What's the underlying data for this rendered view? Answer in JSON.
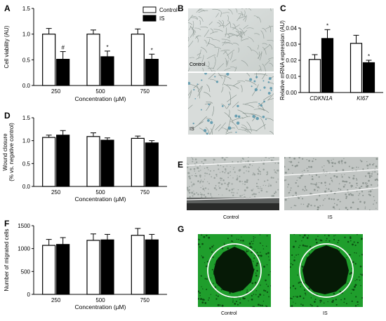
{
  "figure": {
    "panel_letters": [
      "A",
      "B",
      "C",
      "D",
      "E",
      "F",
      "G"
    ],
    "legend": {
      "control": "Control",
      "is": "IS"
    },
    "image_labels": {
      "b_top": "Control",
      "b_bottom": "IS",
      "e_left": "Control",
      "e_right": "IS",
      "g_left": "Control",
      "g_right": "IS"
    }
  },
  "colors": {
    "control": "#ffffff",
    "is": "#000000",
    "axis": "#000000",
    "green": "#1f9e2c",
    "dark": "#061a06"
  },
  "chart_data": [
    {
      "id": "A",
      "type": "bar",
      "ylabel": "Cell viability (AU)",
      "xlabel": "Concentration (µM)",
      "categories": [
        "250",
        "500",
        "750"
      ],
      "ylim": [
        0,
        1.5
      ],
      "yticks": [
        "0.0",
        "0.5",
        "1.0",
        "1.5"
      ],
      "series": [
        {
          "name": "Control",
          "values": [
            1.0,
            1.0,
            1.0
          ],
          "errors": [
            0.11,
            0.08,
            0.1
          ]
        },
        {
          "name": "IS",
          "values": [
            0.51,
            0.56,
            0.51
          ],
          "errors": [
            0.15,
            0.11,
            0.1
          ]
        }
      ],
      "annotations": [
        "#",
        "*",
        "*"
      ],
      "legend": "top-right"
    },
    {
      "id": "C",
      "type": "bar",
      "ylabel": "Relative mRNA expression (AU)",
      "xlabel": "",
      "categories": [
        "CDKN1A",
        "KI67"
      ],
      "ylim": [
        0,
        0.04
      ],
      "yticks": [
        "0.00",
        "0.01",
        "0.02",
        "0.03",
        "0.04"
      ],
      "series": [
        {
          "name": "Control",
          "values": [
            0.0205,
            0.0305
          ],
          "errors": [
            0.003,
            0.005
          ]
        },
        {
          "name": "IS",
          "values": [
            0.0335,
            0.0185
          ],
          "errors": [
            0.0055,
            0.0015
          ]
        }
      ],
      "annotations": [
        "*",
        "*"
      ]
    },
    {
      "id": "D",
      "type": "bar",
      "ylabel": "Wound closure (% vs. negative control)",
      "xlabel": "Concentration (µM)",
      "categories": [
        "250",
        "500",
        "750"
      ],
      "ylim": [
        0,
        1.5
      ],
      "yticks": [
        "0.0",
        "0.5",
        "1.0",
        "1.5"
      ],
      "series": [
        {
          "name": "Control",
          "values": [
            1.07,
            1.09,
            1.05
          ],
          "errors": [
            0.05,
            0.08,
            0.05
          ]
        },
        {
          "name": "IS",
          "values": [
            1.12,
            1.01,
            0.95
          ],
          "errors": [
            0.1,
            0.05,
            0.05
          ]
        }
      ]
    },
    {
      "id": "F",
      "type": "bar",
      "ylabel": "Number of migrated cells",
      "xlabel": "Concentration (µM)",
      "categories": [
        "250",
        "500",
        "750"
      ],
      "ylim": [
        0,
        1500
      ],
      "yticks": [
        "0",
        "500",
        "1000",
        "1500"
      ],
      "series": [
        {
          "name": "Control",
          "values": [
            1070,
            1180,
            1290
          ],
          "errors": [
            130,
            140,
            150
          ]
        },
        {
          "name": "IS",
          "values": [
            1090,
            1190,
            1190
          ],
          "errors": [
            150,
            120,
            120
          ]
        }
      ]
    }
  ]
}
